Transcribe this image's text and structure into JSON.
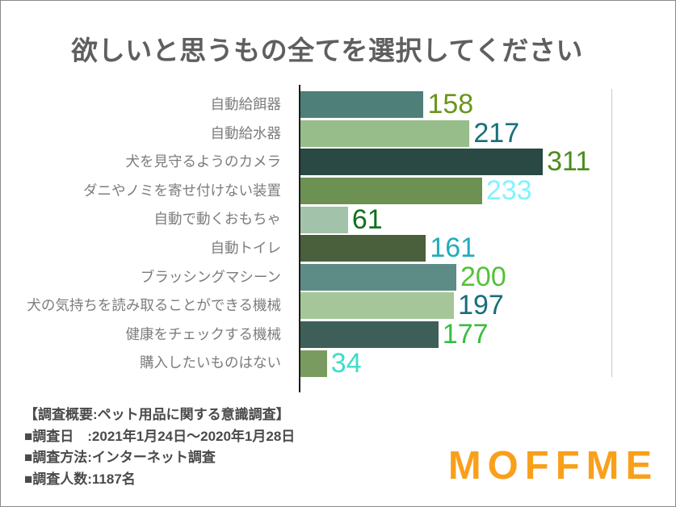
{
  "title": "欲しいと思うもの全てを選択してください",
  "chart_data": {
    "type": "bar",
    "orientation": "horizontal",
    "title": "欲しいと思うもの全てを選択してください",
    "categories": [
      "自動給餌器",
      "自動給水器",
      "犬を見守るようのカメラ",
      "ダニやノミを寄せ付けない装置",
      "自動で動くおもちゃ",
      "自動トイレ",
      "ブラッシングマシーン",
      "犬の気持ちを読み取ることができる機械",
      "健康をチェックする機械",
      "購入したいものはない"
    ],
    "values": [
      158,
      217,
      311,
      233,
      61,
      161,
      200,
      197,
      177,
      34
    ],
    "xlim": [
      0,
      400
    ],
    "grid": "single vertical gridline at x=400, no tick labels",
    "legend_position": "none",
    "bar_colors": [
      "#4E7F79",
      "#96BD8A",
      "#2A4844",
      "#6C9153",
      "#A2C3AA",
      "#4A5F3B",
      "#5D8C86",
      "#A5C699",
      "#3E5F57",
      "#7A9B60"
    ],
    "value_label_colors": [
      "#69961C",
      "#176F7C",
      "#4C8C1E",
      "#82F3FB",
      "#10701E",
      "#1FADB9",
      "#54C13B",
      "#166F7B",
      "#38BE42",
      "#3EDCC8"
    ],
    "category_label_color": "#7c7c7c",
    "axis_color": "#1c1c1c",
    "gridline_color": "#c9c9c9"
  },
  "footer": {
    "lines": [
      "【調査概要:ペット用品に関する意識調査】",
      "■調査日　:2021年1月24日〜2020年1月28日",
      "■調査方法:インターネット調査",
      "■調査人数:1187名"
    ]
  },
  "logo": {
    "text": "MOFFME",
    "color": "#F9A01B"
  }
}
